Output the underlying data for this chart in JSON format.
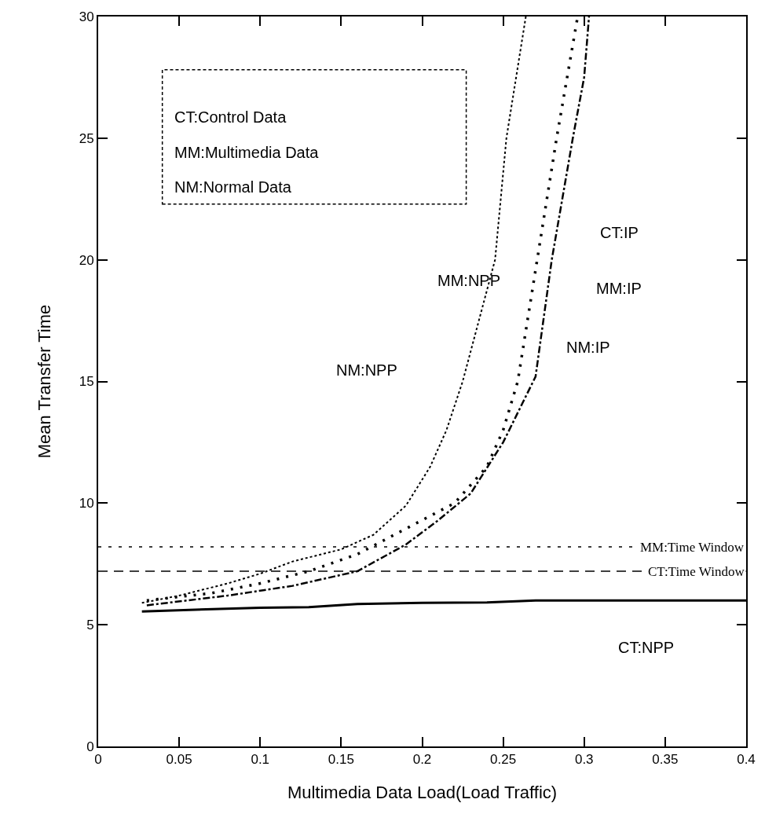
{
  "chart_data": {
    "type": "line",
    "xlabel": "Multimedia Data Load(Load Traffic)",
    "ylabel": "Mean Transfer Time",
    "xlim": [
      0,
      0.4
    ],
    "ylim": [
      0,
      30
    ],
    "xticks": [
      0,
      0.05,
      0.1,
      0.15,
      0.2,
      0.25,
      0.3,
      0.35,
      0.4
    ],
    "yticks": [
      0,
      5,
      10,
      15,
      20,
      25,
      30
    ],
    "marker": "none",
    "series": [
      {
        "color": "#000000",
        "line_style": "solid",
        "x": [
          0.027,
          0.06,
          0.1,
          0.13,
          0.16,
          0.2,
          0.24,
          0.27,
          0.3,
          0.35,
          0.4
        ],
        "values": [
          5.55,
          5.62,
          5.7,
          5.72,
          5.85,
          5.9,
          5.92,
          6.0,
          6.0,
          6.0,
          6.0
        ]
      },
      {
        "color": "#000000",
        "line_style": "dotted",
        "x": [
          0.027,
          0.05,
          0.08,
          0.1,
          0.12,
          0.15,
          0.17,
          0.19,
          0.205,
          0.215,
          0.225,
          0.235,
          0.245,
          0.252,
          0.264
        ],
        "values": [
          5.9,
          6.2,
          6.7,
          7.1,
          7.6,
          8.1,
          8.7,
          9.9,
          11.5,
          13,
          15,
          17.5,
          20,
          25,
          30
        ]
      },
      {
        "color": "#000000",
        "line_style": "dotted",
        "x": [
          0.03,
          0.07,
          0.1,
          0.13,
          0.16,
          0.18,
          0.2,
          0.22,
          0.24,
          0.25,
          0.259,
          0.271,
          0.283,
          0.296
        ],
        "values": [
          6.0,
          6.3,
          6.7,
          7.2,
          7.9,
          8.6,
          9.3,
          10.0,
          11.5,
          13,
          15,
          20,
          25,
          30
        ]
      },
      {
        "color": "#000000",
        "line_style": "dashed",
        "x": [
          0.03,
          0.08,
          0.12,
          0.16,
          0.19,
          0.21,
          0.23,
          0.25,
          0.27,
          0.28,
          0.293,
          0.3,
          0.303
        ],
        "values": [
          5.8,
          6.2,
          6.6,
          7.2,
          8.3,
          9.3,
          10.4,
          12.5,
          15.2,
          20,
          25,
          27.5,
          30
        ]
      }
    ],
    "ref_lines": [
      {
        "axis": "y",
        "value": 8.2,
        "label": "MM:Time Window",
        "line_style": "dotted",
        "color": "#000000"
      },
      {
        "axis": "y",
        "value": 7.2,
        "label": "CT:Time Window",
        "line_style": "dashed",
        "color": "#000000"
      }
    ],
    "annotations": [
      "CT:Control Data",
      "MM:Multimedia Data",
      "NM:Normal Data",
      "CT:IP",
      "MM:IP",
      "NM:IP",
      "MM:NPP",
      "NM:NPP",
      "CT:NPP"
    ]
  }
}
